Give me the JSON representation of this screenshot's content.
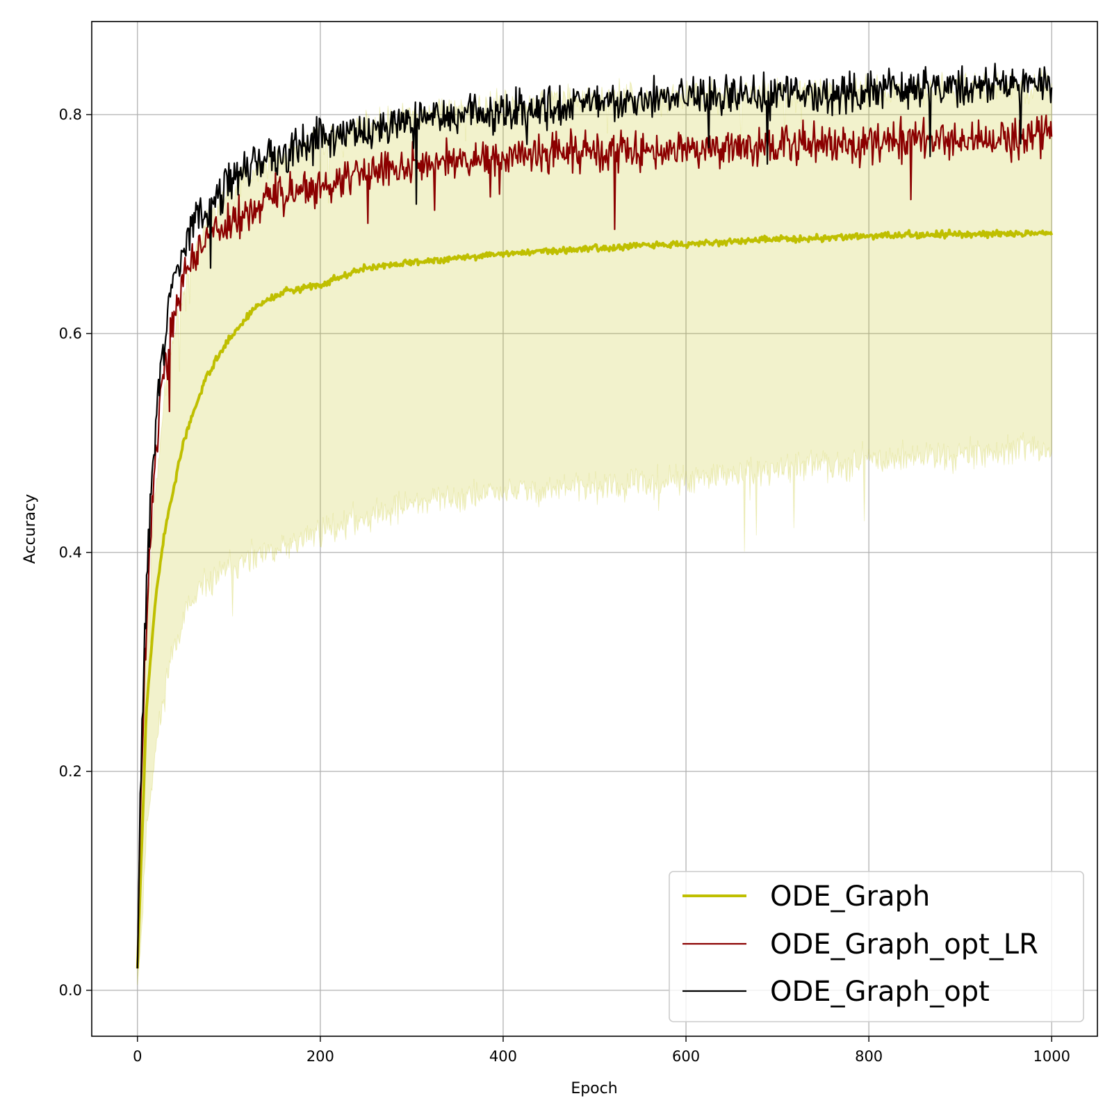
{
  "chart_data": {
    "type": "line",
    "title": "",
    "xlabel": "Epoch",
    "ylabel": "Accuracy",
    "xlim": [
      -50,
      1050
    ],
    "ylim": [
      -0.042,
      0.885
    ],
    "xticks": [
      0,
      200,
      400,
      600,
      800,
      1000
    ],
    "xtick_labels": [
      "0",
      "200",
      "400",
      "600",
      "800",
      "1000"
    ],
    "yticks": [
      0.0,
      0.2,
      0.4,
      0.6,
      0.8
    ],
    "ytick_labels": [
      "0.0",
      "0.2",
      "0.4",
      "0.6",
      "0.8"
    ],
    "grid": true,
    "legend_position": "lower-right",
    "colors": {
      "ode_graph": "#bfbf00",
      "ode_graph_band": "#bfbf00",
      "ode_graph_opt_lr": "#8b0000",
      "ode_graph_opt": "#000000",
      "grid": "#b0b0b0"
    },
    "series": [
      {
        "name": "ODE_Graph",
        "key": "ode_graph",
        "anchors": [
          [
            0,
            0.02
          ],
          [
            5,
            0.14
          ],
          [
            10,
            0.26
          ],
          [
            20,
            0.36
          ],
          [
            30,
            0.42
          ],
          [
            50,
            0.5
          ],
          [
            75,
            0.56
          ],
          [
            100,
            0.595
          ],
          [
            130,
            0.625
          ],
          [
            160,
            0.638
          ],
          [
            200,
            0.645
          ],
          [
            250,
            0.66
          ],
          [
            300,
            0.665
          ],
          [
            400,
            0.673
          ],
          [
            500,
            0.678
          ],
          [
            600,
            0.682
          ],
          [
            700,
            0.686
          ],
          [
            800,
            0.689
          ],
          [
            900,
            0.691
          ],
          [
            1000,
            0.692
          ]
        ],
        "noise": 0.003
      },
      {
        "name": "ODE_Graph_opt_LR",
        "key": "ode_graph_opt_lr",
        "anchors": [
          [
            0,
            0.02
          ],
          [
            3,
            0.16
          ],
          [
            8,
            0.3
          ],
          [
            15,
            0.43
          ],
          [
            25,
            0.54
          ],
          [
            40,
            0.62
          ],
          [
            60,
            0.67
          ],
          [
            80,
            0.69
          ],
          [
            100,
            0.7
          ],
          [
            150,
            0.725
          ],
          [
            200,
            0.735
          ],
          [
            300,
            0.755
          ],
          [
            400,
            0.762
          ],
          [
            500,
            0.767
          ],
          [
            600,
            0.77
          ],
          [
            700,
            0.772
          ],
          [
            800,
            0.775
          ],
          [
            900,
            0.778
          ],
          [
            1000,
            0.78
          ]
        ],
        "noise": 0.018
      },
      {
        "name": "ODE_Graph_opt",
        "key": "ode_graph_opt",
        "anchors": [
          [
            0,
            0.02
          ],
          [
            3,
            0.17
          ],
          [
            8,
            0.33
          ],
          [
            15,
            0.46
          ],
          [
            25,
            0.57
          ],
          [
            40,
            0.65
          ],
          [
            60,
            0.7
          ],
          [
            80,
            0.72
          ],
          [
            100,
            0.74
          ],
          [
            150,
            0.765
          ],
          [
            200,
            0.78
          ],
          [
            300,
            0.795
          ],
          [
            400,
            0.803
          ],
          [
            500,
            0.81
          ],
          [
            600,
            0.815
          ],
          [
            700,
            0.818
          ],
          [
            800,
            0.822
          ],
          [
            900,
            0.825
          ],
          [
            1000,
            0.827
          ]
        ],
        "noise": 0.018
      }
    ],
    "band": {
      "series": "ODE_Graph",
      "upper_anchors": [
        [
          0,
          0.03
        ],
        [
          5,
          0.2
        ],
        [
          10,
          0.33
        ],
        [
          20,
          0.46
        ],
        [
          35,
          0.58
        ],
        [
          50,
          0.64
        ],
        [
          75,
          0.7
        ],
        [
          100,
          0.73
        ],
        [
          150,
          0.76
        ],
        [
          200,
          0.78
        ],
        [
          300,
          0.8
        ],
        [
          400,
          0.81
        ],
        [
          500,
          0.815
        ],
        [
          600,
          0.818
        ],
        [
          700,
          0.82
        ],
        [
          800,
          0.822
        ],
        [
          900,
          0.824
        ],
        [
          1000,
          0.825
        ]
      ],
      "lower_anchors": [
        [
          0,
          0.005
        ],
        [
          5,
          0.06
        ],
        [
          10,
          0.15
        ],
        [
          20,
          0.22
        ],
        [
          35,
          0.3
        ],
        [
          50,
          0.34
        ],
        [
          75,
          0.37
        ],
        [
          100,
          0.385
        ],
        [
          150,
          0.4
        ],
        [
          200,
          0.42
        ],
        [
          300,
          0.445
        ],
        [
          400,
          0.455
        ],
        [
          500,
          0.46
        ],
        [
          600,
          0.465
        ],
        [
          700,
          0.475
        ],
        [
          800,
          0.485
        ],
        [
          900,
          0.49
        ],
        [
          1000,
          0.495
        ]
      ],
      "noise": 0.014,
      "opacity": 0.2
    }
  }
}
